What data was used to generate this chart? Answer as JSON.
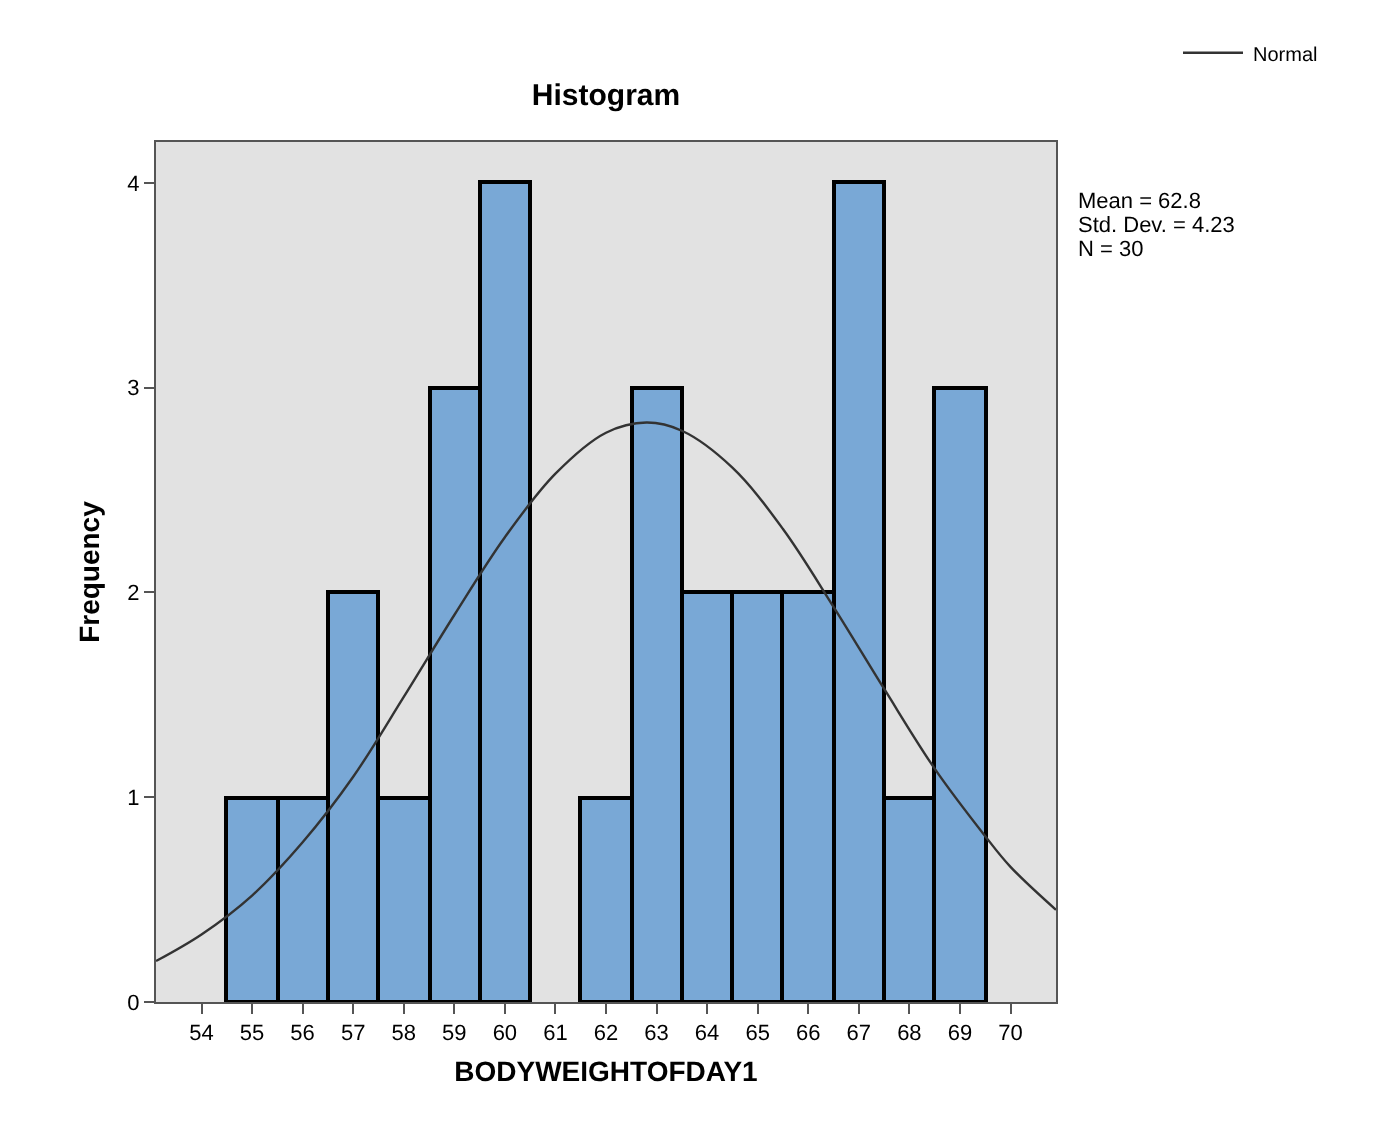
{
  "chart_data": {
    "type": "histogram",
    "title": "Histogram",
    "xlabel": "BODYWEIGHTOFDAY1",
    "ylabel": "Frequency",
    "bins": [
      54.5,
      55.5,
      56.5,
      57.5,
      58.5,
      59.5,
      60.5,
      61.5,
      62.5,
      63.5,
      64.5,
      65.5,
      66.5,
      67.5,
      68.5,
      69.5
    ],
    "values": [
      1,
      1,
      2,
      1,
      3,
      4,
      0,
      1,
      3,
      2,
      2,
      2,
      4,
      1,
      3
    ],
    "color": "#79a8d6",
    "series": [
      {
        "name": "Normal",
        "type": "line",
        "color": "#333333",
        "x": [
          53.1,
          54,
          55,
          56,
          57,
          58,
          59,
          60,
          61,
          62,
          62.8,
          63.5,
          64.5,
          65.5,
          66.5,
          67.5,
          68.5,
          69.5,
          70,
          70.9
        ],
        "values": [
          0.2,
          0.33,
          0.52,
          0.78,
          1.1,
          1.49,
          1.89,
          2.27,
          2.58,
          2.78,
          2.83,
          2.79,
          2.61,
          2.31,
          1.93,
          1.53,
          1.14,
          0.81,
          0.66,
          0.45
        ]
      }
    ],
    "xlim": [
      53.1,
      70.9
    ],
    "xticks": [
      54,
      55,
      56,
      57,
      58,
      59,
      60,
      61,
      62,
      63,
      64,
      65,
      66,
      67,
      68,
      69,
      70
    ],
    "ylim": [
      0,
      4.2
    ],
    "yticks": [
      0,
      1,
      2,
      3,
      4
    ],
    "annotations": [
      "Mean = 62.8",
      "Std. Dev. = 4.23",
      "N = 30"
    ],
    "legend": "top right",
    "grid": false
  }
}
